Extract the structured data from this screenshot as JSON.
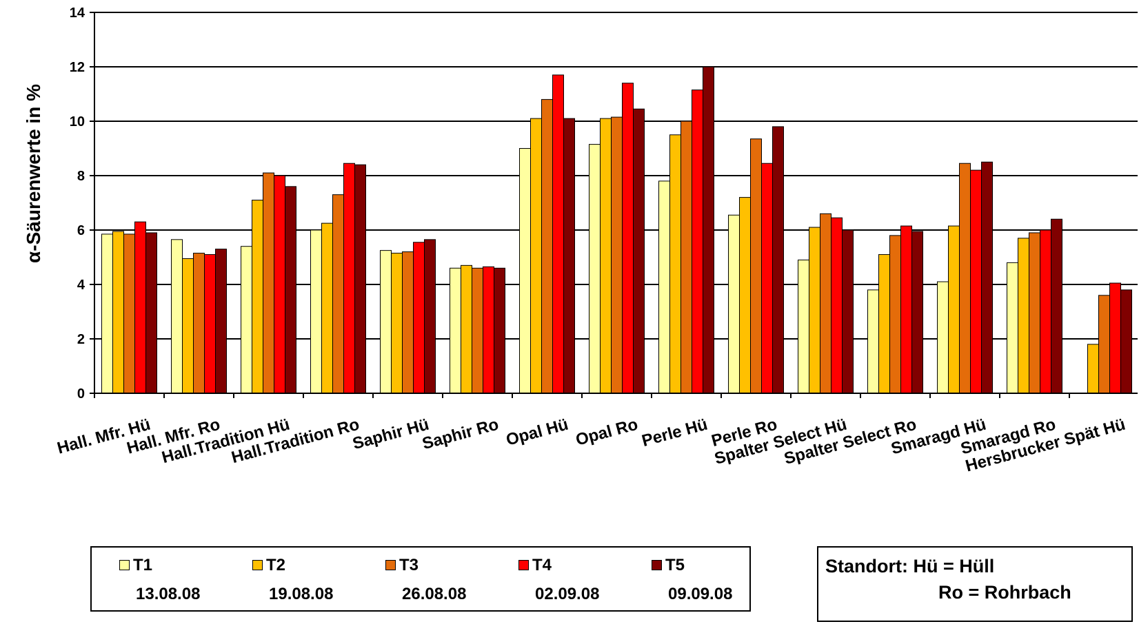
{
  "chart_data": {
    "type": "bar",
    "ylabel": "α-Säurenwerte in %",
    "ylim": [
      0,
      14
    ],
    "yticks": [
      0,
      2,
      4,
      6,
      8,
      10,
      12,
      14
    ],
    "grid": true,
    "legend_position": "bottom",
    "categories": [
      "Hall. Mfr. Hü",
      "Hall. Mfr. Ro",
      "Hall.Tradition Hü",
      "Hall.Tradition Ro",
      "Saphir Hü",
      "Saphir Ro",
      "Opal Hü",
      "Opal Ro",
      "Perle Hü",
      "Perle Ro",
      "Spalter Select Hü",
      "Spalter Select Ro",
      "Smaragd Hü",
      "Smaragd Ro",
      "Hersbrucker Spät Hü"
    ],
    "series": [
      {
        "name": "T1",
        "date": "13.08.08",
        "color": "#FFFFA0",
        "values": [
          5.85,
          5.65,
          5.4,
          6.0,
          5.25,
          4.6,
          9.0,
          9.15,
          7.8,
          6.55,
          4.9,
          3.8,
          4.1,
          4.8,
          null
        ]
      },
      {
        "name": "T2",
        "date": "19.08.08",
        "color": "#FFC000",
        "values": [
          5.95,
          4.95,
          7.1,
          6.25,
          5.15,
          4.7,
          10.1,
          10.1,
          9.5,
          7.2,
          6.1,
          5.1,
          6.15,
          5.7,
          1.8
        ]
      },
      {
        "name": "T3",
        "date": "26.08.08",
        "color": "#E46C0A",
        "values": [
          5.85,
          5.15,
          8.1,
          7.3,
          5.2,
          4.6,
          10.8,
          10.15,
          10.0,
          9.35,
          6.6,
          5.8,
          8.45,
          5.9,
          3.6
        ]
      },
      {
        "name": "T4",
        "date": "02.09.08",
        "color": "#FF0000",
        "values": [
          6.3,
          5.1,
          8.0,
          8.45,
          5.55,
          4.65,
          11.7,
          11.4,
          11.15,
          8.45,
          6.45,
          6.15,
          8.2,
          6.0,
          4.05
        ]
      },
      {
        "name": "T5",
        "date": "09.09.08",
        "color": "#800000",
        "values": [
          5.9,
          5.3,
          7.6,
          8.4,
          5.65,
          4.6,
          10.1,
          10.45,
          12.0,
          9.8,
          6.0,
          5.95,
          8.5,
          6.4,
          3.8
        ]
      }
    ]
  },
  "note": {
    "line1": "Standort: Hü = Hüll",
    "line2": "Ro = Rohrbach"
  }
}
